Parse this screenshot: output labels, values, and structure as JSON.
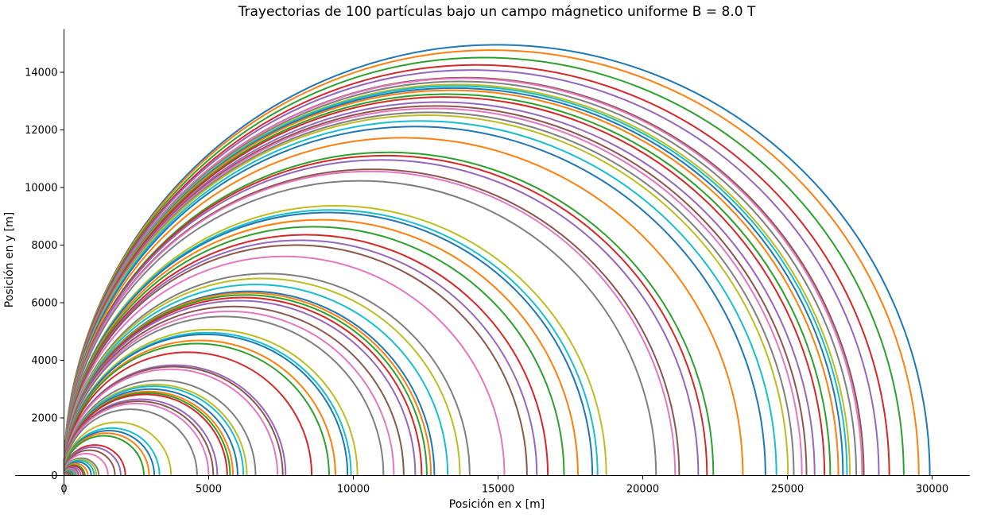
{
  "chart_data": {
    "type": "line",
    "title": "Trayectorias de 100 partículas bajo un campo mágnetico uniforme B = 8.0 T",
    "xlabel": "Posición en x [m]",
    "ylabel": "Posición en y [m]",
    "xlim": [
      -150,
      31300
    ],
    "ylim": [
      0,
      15500
    ],
    "x_ticks": [
      0,
      5000,
      10000,
      15000,
      20000,
      25000,
      30000
    ],
    "x_tick_labels": [
      "0",
      "5000",
      "10000",
      "15000",
      "20000",
      "25000",
      "30000"
    ],
    "y_ticks": [
      0,
      2000,
      4000,
      6000,
      8000,
      10000,
      12000,
      14000
    ],
    "y_tick_labels": [
      "0",
      "2000",
      "4000",
      "6000",
      "8000",
      "10000",
      "12000",
      "14000"
    ],
    "grid": false,
    "legend": "none",
    "series_kind": "semicircle",
    "series_radii_m": [
      14960,
      14770,
      14510,
      14260,
      14080,
      13820,
      13790,
      13690,
      13580,
      13530,
      13460,
      13380,
      13240,
      13140,
      12970,
      12830,
      12750,
      12610,
      12510,
      12310,
      12120,
      11730,
      11220,
      11110,
      10960,
      10630,
      10560,
      10230,
      9370,
      9220,
      9130,
      8880,
      8640,
      8360,
      8170,
      8000,
      7610,
      7010,
      6840,
      6630,
      6400,
      6340,
      6270,
      6180,
      6070,
      5870,
      5700,
      5520,
      5070,
      4960,
      4900,
      4690,
      4580,
      4280,
      3830,
      3780,
      3690,
      3310,
      3160,
      3100,
      3000,
      2920,
      2870,
      2820,
      2650,
      2580,
      2500,
      2300,
      1850,
      1650,
      1560,
      1470,
      1380,
      1060,
      980,
      880,
      760,
      600,
      560,
      520,
      470,
      410,
      360,
      330,
      290,
      250,
      230,
      200,
      180,
      170,
      150,
      130,
      120,
      100,
      90,
      80,
      60,
      50,
      30,
      20
    ],
    "palette": [
      "#1f77b4",
      "#ff7f0e",
      "#2ca02c",
      "#d62728",
      "#9467bd",
      "#8c564b",
      "#e377c2",
      "#7f7f7f",
      "#bcbd22",
      "#17becf"
    ]
  }
}
